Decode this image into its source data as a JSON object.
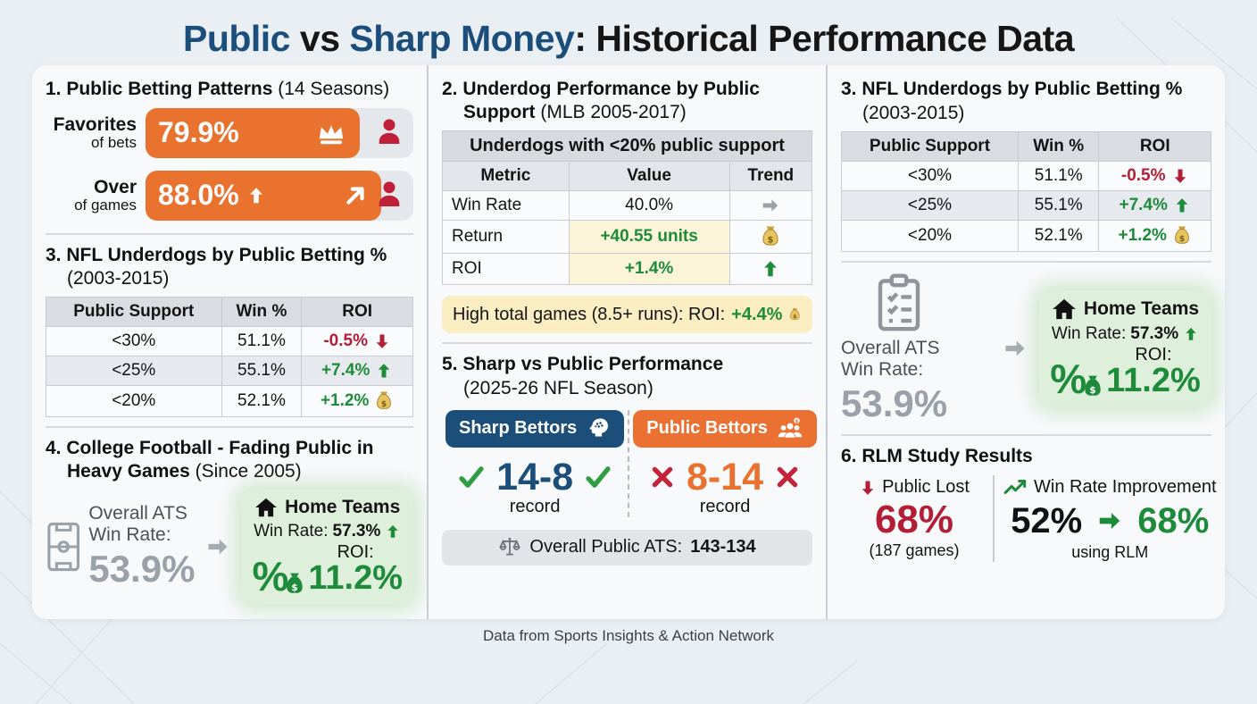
{
  "title": {
    "public": "Public",
    "vs": " vs ",
    "sharp": "Sharp Money",
    "rest": ": Historical Performance Data"
  },
  "footer": "Data from Sports Insights & Action Network",
  "colors": {
    "accent_orange": "#E8722E",
    "accent_blue": "#1B4E79",
    "positive_green": "#1E8B3B",
    "negative_red": "#B21E35",
    "person_red": "#C01F3A",
    "gray_value": "#9BA1A8",
    "highlight_yellow": "#FAEDC2",
    "home_green_bg": "#DEF0DB"
  },
  "patterns": {
    "title": "1. Public Betting Patterns",
    "subtitle": "(14 Seasons)",
    "rows": [
      {
        "label": "Favorites",
        "sublabel": "of bets",
        "value": "79.9%",
        "pct": 79.9
      },
      {
        "label": "Over",
        "sublabel": "of games",
        "value": "88.0%",
        "pct": 88.0
      }
    ]
  },
  "nfl": {
    "title": "3. NFL Underdogs by Public Betting %",
    "subtitle": "(2003-2015)",
    "headers": {
      "support": "Public Support",
      "win": "Win %",
      "roi": "ROI"
    },
    "rows": [
      {
        "support": "<30%",
        "win": "51.1%",
        "roi": "-0.5%"
      },
      {
        "support": "<25%",
        "win": "55.1%",
        "roi": "+7.4%"
      },
      {
        "support": "<20%",
        "win": "52.1%",
        "roi": "+1.2%"
      }
    ]
  },
  "college": {
    "title_l1": "4. College Football - Fading Public in",
    "title_b2": "Heavy Games",
    "subtitle": "(Since 2005)",
    "overall_label1": "Overall ATS",
    "overall_label2": "Win Rate:",
    "overall_value": "53.9%"
  },
  "home": {
    "title": "Home Teams",
    "win_label": "Win Rate:",
    "win_value": "57.3%",
    "roi_label": "ROI:",
    "roi_value": "11.2%"
  },
  "mlb": {
    "title_l1": "2. Underdog Performance by Public",
    "title_b2": "Support",
    "subtitle": "(MLB 2005-2017)",
    "band": "Underdogs with <20% public support",
    "headers": {
      "metric": "Metric",
      "value": "Value",
      "trend": "Trend"
    },
    "rows": [
      {
        "metric": "Win Rate",
        "value": "40.0%"
      },
      {
        "metric": "Return",
        "value": "+40.55 units"
      },
      {
        "metric": "ROI",
        "value": "+1.4%"
      }
    ],
    "highlight_text": "High total games (8.5+ runs): ROI:",
    "highlight_value": "+4.4%"
  },
  "sharp": {
    "title": "5. Sharp vs Public Performance",
    "subtitle": "(2025-26 NFL Season)",
    "sharp_label": "Sharp Bettors",
    "public_label": "Public Bettors",
    "sharp_record": "14-8",
    "public_record": "8-14",
    "record_label": "record",
    "overall_label": "Overall Public ATS:",
    "overall_value": "143-134"
  },
  "ats": {
    "label1": "Overall ATS",
    "label2": "Win Rate:",
    "value": "53.9%"
  },
  "rlm": {
    "title": "6. RLM Study Results",
    "lost_label": "Public Lost",
    "lost_value": "68%",
    "lost_note": "(187 games)",
    "improve_label": "Win Rate Improvement",
    "from": "52%",
    "to": "68%",
    "note": "using RLM"
  }
}
